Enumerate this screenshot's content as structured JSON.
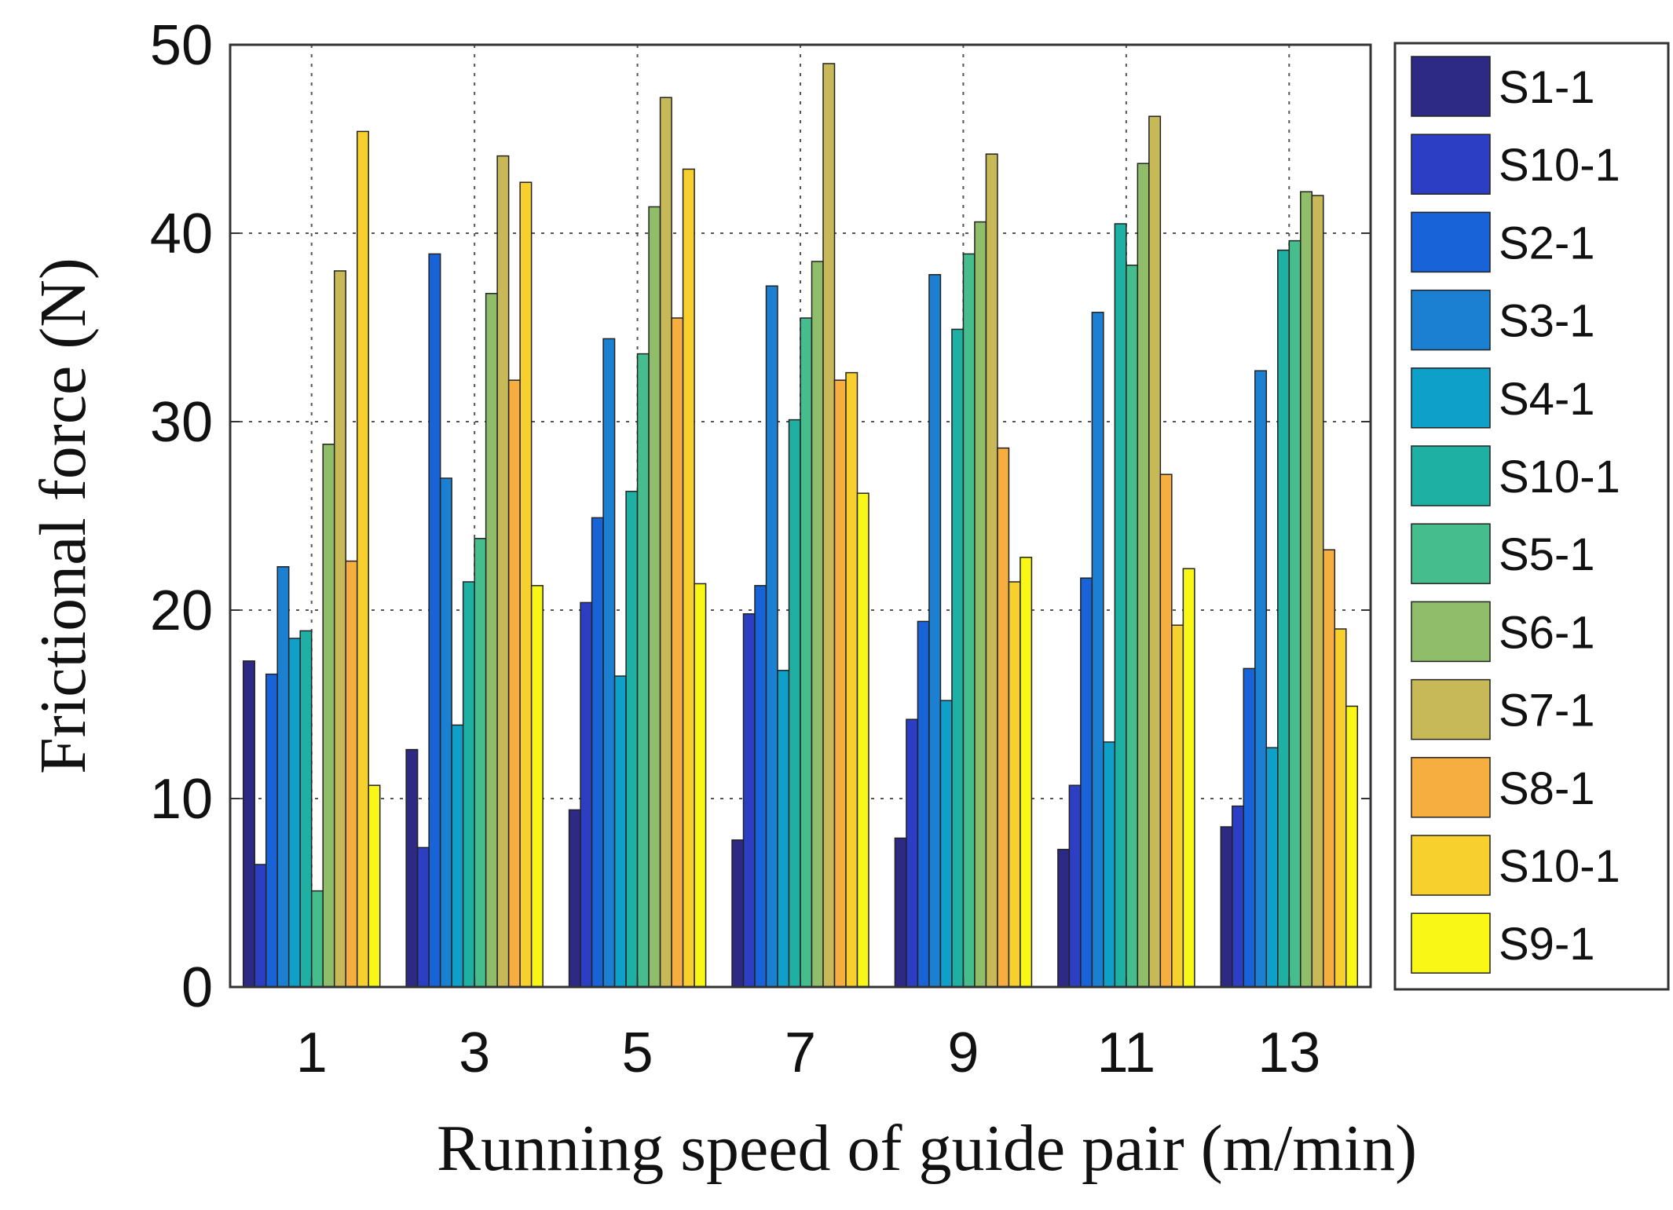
{
  "chart_data": {
    "type": "bar",
    "title": "",
    "xlabel": "Running speed of guide pair (m/min)",
    "ylabel": "Frictional force (N)",
    "categories": [
      "1",
      "3",
      "5",
      "7",
      "9",
      "11",
      "13"
    ],
    "ylim": [
      0,
      50
    ],
    "yticks": [
      0,
      10,
      20,
      30,
      40,
      50
    ],
    "grid": true,
    "legend_position": "right",
    "series": [
      {
        "name": "S1-1",
        "color": "#2c2a84",
        "values": [
          17.3,
          12.6,
          9.4,
          7.8,
          7.9,
          7.3,
          8.5
        ]
      },
      {
        "name": "S10-1",
        "color": "#2b3ec4",
        "values": [
          6.5,
          7.4,
          20.4,
          19.8,
          14.2,
          10.7,
          9.6
        ]
      },
      {
        "name": "S2-1",
        "color": "#1863d8",
        "values": [
          16.6,
          38.9,
          24.9,
          21.3,
          19.4,
          21.7,
          16.9
        ]
      },
      {
        "name": "S3-1",
        "color": "#1b80d2",
        "values": [
          22.3,
          27.0,
          34.4,
          37.2,
          37.8,
          35.8,
          32.7
        ]
      },
      {
        "name": "S4-1",
        "color": "#0ea0c9",
        "values": [
          18.5,
          13.9,
          16.5,
          16.8,
          15.2,
          13.0,
          12.7
        ]
      },
      {
        "name": "S10-1",
        "color": "#1db0a3",
        "values": [
          18.9,
          21.5,
          26.3,
          30.1,
          34.9,
          40.5,
          39.1
        ]
      },
      {
        "name": "S5-1",
        "color": "#45bd8d",
        "values": [
          5.1,
          23.8,
          33.6,
          35.5,
          38.9,
          38.3,
          39.6
        ]
      },
      {
        "name": "S6-1",
        "color": "#8fbd6a",
        "values": [
          28.8,
          36.8,
          41.4,
          38.5,
          40.6,
          43.7,
          42.2
        ]
      },
      {
        "name": "S7-1",
        "color": "#c7b858",
        "values": [
          38.0,
          44.1,
          47.2,
          49.0,
          44.2,
          46.2,
          42.0
        ]
      },
      {
        "name": "S8-1",
        "color": "#f5ae3f",
        "values": [
          22.6,
          32.2,
          35.5,
          32.2,
          28.6,
          27.2,
          23.2
        ]
      },
      {
        "name": "S10-1",
        "color": "#f7d02d",
        "values": [
          45.4,
          42.7,
          43.4,
          32.6,
          21.5,
          19.2,
          19.0
        ]
      },
      {
        "name": "S9-1",
        "color": "#f9f716",
        "values": [
          10.7,
          21.3,
          21.4,
          26.2,
          22.8,
          22.2,
          14.9
        ]
      }
    ]
  }
}
